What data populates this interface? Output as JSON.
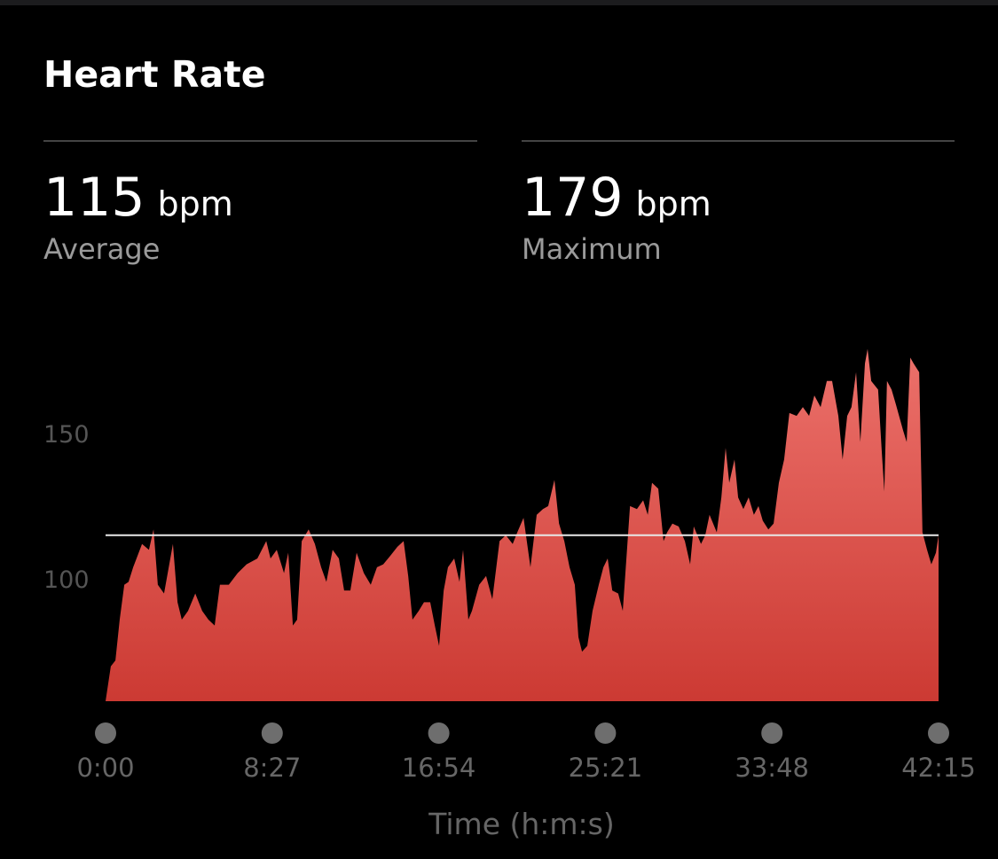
{
  "chart_data": {
    "type": "area",
    "title": "Heart Rate",
    "stats": [
      {
        "value": 115,
        "unit": "bpm",
        "label": "Average"
      },
      {
        "value": 179,
        "unit": "bpm",
        "label": "Maximum"
      }
    ],
    "x_label": "Time (h:m:s)",
    "x": [
      0,
      16,
      30,
      43,
      57,
      70,
      84,
      111,
      132,
      146,
      159,
      178,
      205,
      219,
      232,
      251,
      273,
      294,
      313,
      332,
      348,
      375,
      402,
      429,
      462,
      489,
      502,
      521,
      543,
      556,
      570,
      583,
      597,
      618,
      637,
      656,
      672,
      691,
      710,
      726,
      745,
      764,
      786,
      807,
      826,
      845,
      867,
      888,
      907,
      921,
      934,
      953,
      969,
      988,
      1002,
      1015,
      1029,
      1042,
      1061,
      1077,
      1088,
      1104,
      1115,
      1137,
      1158,
      1177,
      1199,
      1218,
      1239,
      1253,
      1272,
      1293,
      1312,
      1331,
      1347,
      1366,
      1380,
      1396,
      1412,
      1428,
      1439,
      1450,
      1466,
      1482,
      1501,
      1515,
      1528,
      1542,
      1560,
      1574,
      1596,
      1617,
      1636,
      1650,
      1663,
      1682,
      1698,
      1709,
      1725,
      1744,
      1763,
      1779,
      1790,
      1812,
      1825,
      1838,
      1860,
      1874,
      1887,
      1898,
      1914,
      1925,
      1941,
      1957,
      1973,
      1987,
      2000,
      2017,
      2033,
      2049,
      2065,
      2081,
      2103,
      2122,
      2141,
      2157,
      2176,
      2195,
      2211,
      2230,
      2243,
      2257,
      2270,
      2284,
      2297,
      2311,
      2319,
      2330,
      2351,
      2362,
      2370,
      2378,
      2392,
      2405,
      2427,
      2438,
      2449,
      2459,
      2476,
      2486,
      2500,
      2513,
      2527,
      2535
    ],
    "values": [
      58,
      70,
      72,
      86,
      98,
      99,
      104,
      112,
      110,
      117,
      98,
      95,
      112,
      92,
      86,
      89,
      95,
      89,
      86,
      84,
      98,
      98,
      102,
      105,
      107,
      113,
      107,
      110,
      102,
      109,
      84,
      86,
      113,
      117,
      112,
      104,
      99,
      110,
      107,
      96,
      96,
      109,
      102,
      98,
      104,
      105,
      108,
      111,
      113,
      101,
      86,
      89,
      92,
      92,
      84,
      77,
      96,
      104,
      107,
      99,
      110,
      86,
      89,
      98,
      101,
      93,
      113,
      115,
      112,
      116,
      121,
      104,
      122,
      124,
      125,
      134,
      119,
      113,
      104,
      98,
      80,
      75,
      77,
      89,
      98,
      104,
      107,
      96,
      95,
      89,
      125,
      124,
      127,
      122,
      133,
      131,
      113,
      116,
      119,
      118,
      113,
      105,
      118,
      112,
      115,
      122,
      116,
      128,
      145,
      133,
      141,
      128,
      124,
      128,
      122,
      125,
      120,
      117,
      119,
      133,
      141,
      157,
      156,
      159,
      156,
      163,
      159,
      168,
      168,
      156,
      141,
      156,
      159,
      171,
      147,
      174,
      179,
      168,
      165,
      144,
      130,
      168,
      165,
      160,
      151,
      147,
      176,
      174,
      171,
      116,
      110,
      105,
      109,
      115
    ],
    "gradient": [
      "#ec716b",
      "#cc3a33"
    ],
    "xlim": [
      0,
      2535
    ],
    "xticks": [
      {
        "value": 0,
        "label": "0:00"
      },
      {
        "value": 507,
        "label": "8:27"
      },
      {
        "value": 1014,
        "label": "16:54"
      },
      {
        "value": 1521,
        "label": "25:21"
      },
      {
        "value": 2028,
        "label": "33:48"
      },
      {
        "value": 2535,
        "label": "42:15"
      }
    ],
    "ylim": [
      58,
      181
    ],
    "yticks": [
      100,
      150
    ]
  }
}
